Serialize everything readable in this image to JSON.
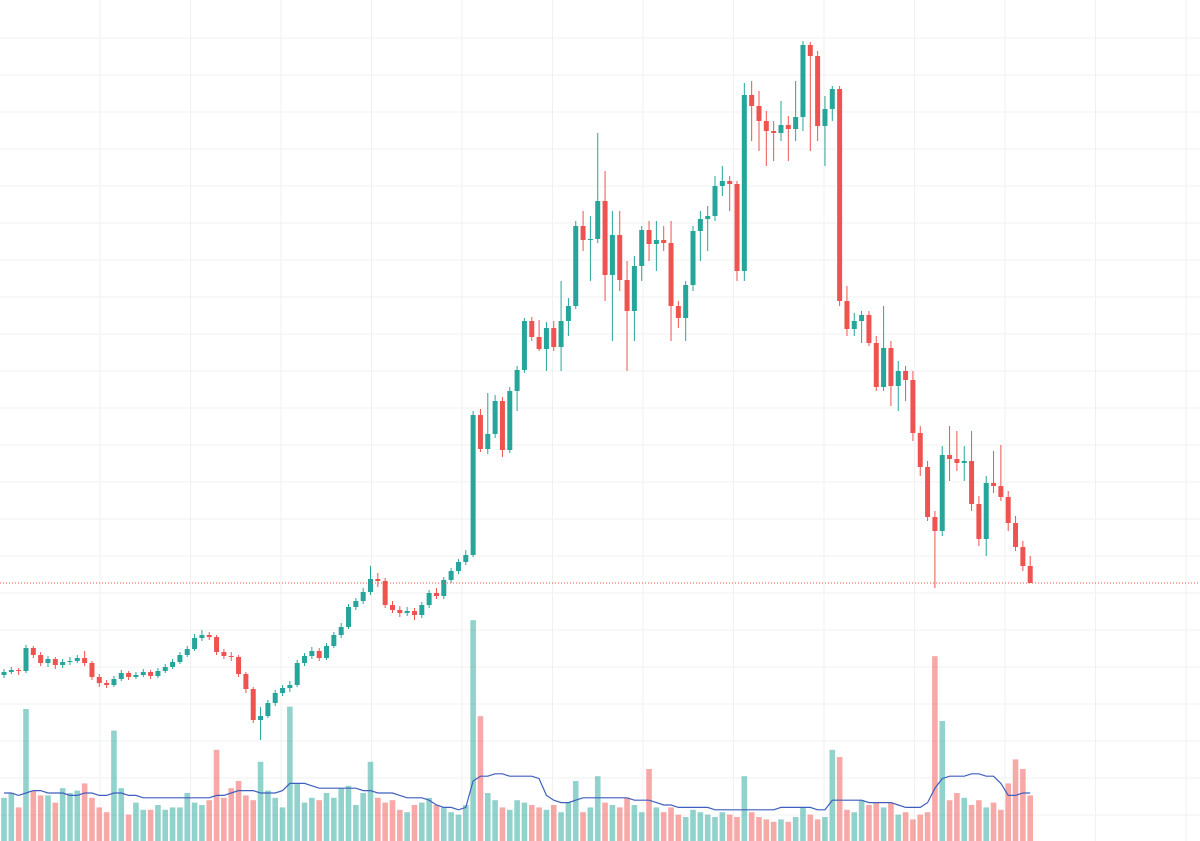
{
  "chart_data": {
    "type": "candlestick",
    "candles": [
      [
        16.6,
        17.2,
        16.3,
        16.9
      ],
      [
        16.9,
        17.4,
        16.7,
        17.1
      ],
      [
        17.1,
        17.3,
        16.6,
        17.0
      ],
      [
        17.0,
        19.6,
        16.8,
        19.3
      ],
      [
        19.3,
        19.5,
        18.3,
        18.6
      ],
      [
        18.6,
        18.9,
        17.5,
        17.8
      ],
      [
        17.8,
        18.5,
        17.4,
        18.2
      ],
      [
        18.2,
        18.4,
        17.2,
        17.6
      ],
      [
        17.6,
        18.2,
        17.3,
        17.9
      ],
      [
        17.9,
        18.4,
        17.6,
        18.0
      ],
      [
        18.0,
        18.6,
        17.8,
        18.3
      ],
      [
        18.3,
        19.0,
        17.5,
        17.8
      ],
      [
        17.8,
        18.0,
        16.1,
        16.4
      ],
      [
        16.4,
        16.7,
        15.4,
        15.8
      ],
      [
        15.8,
        16.1,
        15.3,
        15.6
      ],
      [
        15.6,
        16.5,
        15.4,
        16.2
      ],
      [
        16.2,
        17.1,
        16.0,
        16.8
      ],
      [
        16.8,
        17.0,
        16.1,
        16.4
      ],
      [
        16.4,
        16.9,
        16.2,
        16.6
      ],
      [
        16.6,
        17.2,
        16.4,
        16.9
      ],
      [
        16.9,
        17.1,
        16.2,
        16.5
      ],
      [
        16.5,
        17.3,
        16.3,
        17.0
      ],
      [
        17.0,
        17.7,
        16.8,
        17.4
      ],
      [
        17.4,
        18.2,
        17.2,
        17.9
      ],
      [
        17.9,
        18.9,
        17.7,
        18.6
      ],
      [
        18.6,
        19.5,
        18.4,
        19.2
      ],
      [
        19.2,
        20.7,
        19.0,
        20.3
      ],
      [
        20.3,
        21.1,
        20.0,
        20.6
      ],
      [
        20.6,
        20.9,
        20.1,
        20.4
      ],
      [
        20.4,
        20.6,
        18.6,
        18.9
      ],
      [
        18.9,
        19.2,
        18.2,
        18.5
      ],
      [
        18.5,
        18.9,
        18.0,
        18.4
      ],
      [
        18.4,
        18.6,
        16.4,
        16.7
      ],
      [
        16.7,
        16.9,
        14.8,
        15.2
      ],
      [
        15.2,
        15.4,
        11.8,
        12.1
      ],
      [
        12.1,
        13.4,
        10.1,
        12.5
      ],
      [
        12.5,
        14.1,
        12.3,
        13.8
      ],
      [
        13.8,
        15.1,
        13.5,
        14.8
      ],
      [
        14.8,
        15.6,
        14.5,
        15.3
      ],
      [
        15.3,
        16.0,
        14.9,
        15.6
      ],
      [
        15.6,
        18.1,
        15.4,
        17.8
      ],
      [
        17.8,
        18.8,
        17.5,
        18.5
      ],
      [
        18.5,
        19.4,
        18.2,
        19.0
      ],
      [
        19.0,
        19.3,
        18.0,
        18.3
      ],
      [
        18.3,
        19.8,
        18.1,
        19.5
      ],
      [
        19.5,
        20.9,
        19.3,
        20.6
      ],
      [
        20.6,
        21.8,
        20.3,
        21.4
      ],
      [
        21.4,
        23.7,
        21.2,
        23.4
      ],
      [
        23.4,
        24.3,
        23.1,
        24.0
      ],
      [
        24.0,
        25.3,
        23.7,
        24.9
      ],
      [
        24.9,
        27.5,
        24.6,
        26.2
      ],
      [
        26.2,
        26.8,
        25.4,
        26.0
      ],
      [
        26.0,
        26.3,
        23.3,
        23.6
      ],
      [
        23.6,
        24.0,
        22.8,
        23.1
      ],
      [
        23.1,
        23.5,
        22.4,
        22.8
      ],
      [
        22.8,
        23.4,
        22.5,
        23.0
      ],
      [
        23.0,
        23.3,
        22.1,
        22.6
      ],
      [
        22.6,
        23.9,
        22.3,
        23.6
      ],
      [
        23.6,
        25.1,
        23.3,
        24.8
      ],
      [
        24.8,
        25.3,
        24.2,
        24.5
      ],
      [
        24.5,
        26.4,
        24.2,
        26.1
      ],
      [
        26.1,
        27.3,
        25.8,
        27.0
      ],
      [
        27.0,
        28.2,
        26.7,
        27.9
      ],
      [
        27.9,
        29.1,
        27.6,
        28.6
      ],
      [
        28.6,
        43.0,
        28.4,
        42.6
      ],
      [
        42.6,
        43.2,
        38.9,
        39.2
      ],
      [
        39.2,
        44.8,
        38.7,
        40.7
      ],
      [
        40.7,
        44.6,
        40.3,
        44.0
      ],
      [
        44.0,
        44.4,
        38.4,
        39.1
      ],
      [
        39.1,
        45.4,
        38.8,
        45.0
      ],
      [
        45.0,
        47.5,
        43.0,
        47.1
      ],
      [
        47.1,
        52.3,
        46.8,
        52.0
      ],
      [
        52.0,
        52.4,
        50.0,
        50.4
      ],
      [
        50.4,
        52.1,
        49.0,
        49.2
      ],
      [
        49.2,
        51.9,
        47.0,
        51.3
      ],
      [
        51.3,
        52.0,
        49.0,
        49.4
      ],
      [
        49.4,
        56.0,
        47.0,
        52.0
      ],
      [
        52.0,
        54.3,
        50.5,
        53.5
      ],
      [
        53.5,
        62.0,
        53.2,
        61.5
      ],
      [
        61.5,
        63.0,
        59.0,
        60.1
      ],
      [
        60.1,
        62.5,
        56.0,
        60.2
      ],
      [
        60.2,
        70.8,
        59.8,
        64.0
      ],
      [
        64.0,
        67.0,
        54.0,
        56.6
      ],
      [
        56.6,
        63.0,
        50.0,
        60.6
      ],
      [
        60.6,
        63.0,
        55.0,
        56.1
      ],
      [
        56.1,
        58.0,
        47.0,
        53.0
      ],
      [
        53.0,
        58.5,
        50.0,
        57.5
      ],
      [
        57.5,
        61.5,
        56.0,
        61.1
      ],
      [
        61.1,
        62.0,
        58.0,
        59.7
      ],
      [
        59.7,
        62.0,
        57.0,
        60.1
      ],
      [
        60.1,
        61.5,
        59.0,
        59.8
      ],
      [
        59.8,
        62.0,
        50.0,
        53.5
      ],
      [
        53.5,
        54.0,
        51.3,
        52.3
      ],
      [
        52.3,
        56.0,
        50.0,
        55.6
      ],
      [
        55.6,
        61.5,
        55.0,
        61.0
      ],
      [
        61.0,
        63.0,
        58.0,
        62.2
      ],
      [
        62.2,
        63.5,
        59.0,
        62.5
      ],
      [
        62.5,
        66.5,
        62.0,
        65.5
      ],
      [
        65.5,
        67.5,
        64.5,
        66.0
      ],
      [
        66.0,
        66.5,
        63.0,
        65.7
      ],
      [
        65.7,
        66.0,
        56.0,
        57.0
      ],
      [
        57.0,
        75.8,
        56.0,
        74.6
      ],
      [
        74.6,
        76.0,
        70.0,
        73.5
      ],
      [
        73.5,
        75.0,
        69.0,
        72.0
      ],
      [
        72.0,
        73.0,
        67.5,
        71.0
      ],
      [
        71.0,
        72.0,
        68.0,
        70.8
      ],
      [
        70.8,
        74.0,
        70.0,
        71.6
      ],
      [
        71.6,
        72.5,
        68.0,
        71.2
      ],
      [
        71.2,
        76.0,
        70.0,
        72.4
      ],
      [
        72.4,
        80.0,
        71.0,
        79.6
      ],
      [
        79.6,
        79.9,
        69.0,
        78.5
      ],
      [
        78.5,
        79.0,
        70.0,
        71.5
      ],
      [
        71.5,
        74.5,
        67.5,
        73.2
      ],
      [
        73.2,
        75.5,
        72.0,
        75.2
      ],
      [
        75.2,
        75.5,
        53.5,
        54.0
      ],
      [
        54.0,
        55.5,
        50.5,
        51.2
      ],
      [
        51.2,
        52.8,
        50.5,
        52.0
      ],
      [
        52.0,
        53.0,
        49.8,
        52.6
      ],
      [
        52.6,
        53.0,
        49.5,
        49.8
      ],
      [
        49.8,
        50.5,
        45.0,
        45.4
      ],
      [
        45.4,
        53.5,
        45.0,
        49.3
      ],
      [
        49.3,
        50.0,
        43.5,
        45.5
      ],
      [
        45.5,
        48.0,
        43.0,
        47.0
      ],
      [
        47.0,
        47.5,
        44.0,
        46.1
      ],
      [
        46.1,
        47.0,
        40.0,
        40.8
      ],
      [
        40.8,
        41.5,
        36.5,
        37.4
      ],
      [
        37.4,
        38.0,
        32.0,
        32.4
      ],
      [
        32.4,
        33.0,
        25.3,
        31.0
      ],
      [
        31.0,
        39.5,
        30.5,
        38.6
      ],
      [
        38.6,
        41.5,
        36.0,
        38.2
      ],
      [
        38.2,
        41.0,
        37.0,
        37.8
      ],
      [
        37.8,
        39.5,
        36.0,
        38.0
      ],
      [
        38.0,
        41.0,
        33.0,
        33.7
      ],
      [
        33.7,
        34.5,
        29.5,
        30.2
      ],
      [
        30.2,
        36.5,
        28.5,
        35.8
      ],
      [
        35.8,
        39.0,
        34.8,
        35.5
      ],
      [
        35.5,
        39.6,
        34.0,
        34.4
      ],
      [
        34.4,
        35.0,
        31.0,
        31.8
      ],
      [
        31.8,
        32.5,
        29.0,
        29.4
      ],
      [
        29.4,
        30.0,
        27.0,
        27.5
      ],
      [
        27.5,
        28.5,
        25.8,
        25.8
      ]
    ],
    "volume": [
      18,
      20,
      14,
      55,
      21,
      19,
      19,
      16,
      22,
      20,
      21,
      24,
      18,
      14,
      12,
      46,
      22,
      11,
      16,
      13,
      13,
      15,
      13,
      14,
      14,
      20,
      16,
      15,
      17,
      38,
      18,
      22,
      25,
      19,
      17,
      33,
      21,
      18,
      14,
      56,
      24,
      16,
      18,
      17,
      20,
      18,
      22,
      23,
      15,
      20,
      33,
      18,
      16,
      17,
      13,
      12,
      15,
      16,
      18,
      15,
      14,
      12,
      11,
      15,
      92,
      52,
      20,
      17,
      14,
      13,
      17,
      16,
      15,
      14,
      13,
      15,
      12,
      16,
      25,
      12,
      14,
      27,
      16,
      15,
      14,
      18,
      15,
      12,
      30,
      14,
      12,
      14,
      11,
      10,
      13,
      12,
      11,
      10,
      12,
      11,
      10,
      27,
      12,
      10,
      9,
      8,
      9,
      8,
      10,
      14,
      11,
      9,
      10,
      38,
      35,
      13,
      12,
      17,
      15,
      16,
      14,
      16,
      11,
      12,
      9,
      11,
      12,
      77,
      50,
      17,
      20,
      18,
      15,
      17,
      14,
      16,
      13,
      24,
      34,
      30,
      19
    ],
    "volume_ma": [
      20,
      20,
      19,
      20,
      21,
      21,
      20,
      20,
      20,
      19,
      19,
      20,
      20,
      19,
      19,
      20,
      20,
      19,
      19,
      18,
      18,
      18,
      18,
      18,
      18,
      18,
      18,
      18,
      18,
      19,
      19,
      20,
      21,
      21,
      21,
      20,
      20,
      20,
      21,
      24,
      24,
      24,
      23,
      22,
      22,
      22,
      22,
      22,
      22,
      21,
      21,
      20,
      20,
      20,
      19,
      18,
      18,
      18,
      17,
      15,
      14,
      14,
      13,
      14,
      25,
      27,
      27,
      28,
      28,
      27,
      27,
      27,
      27,
      26,
      19,
      17,
      16,
      16,
      17,
      18,
      18,
      18,
      18,
      18,
      18,
      18,
      17,
      17,
      17,
      16,
      15,
      15,
      14,
      14,
      14,
      14,
      14,
      13,
      13,
      13,
      13,
      13,
      13,
      13,
      13,
      13,
      14,
      14,
      14,
      14,
      14,
      13,
      13,
      17,
      17,
      17,
      17,
      17,
      16,
      16,
      16,
      16,
      15,
      14,
      14,
      14,
      16,
      22,
      26,
      27,
      27,
      27,
      28,
      28,
      27,
      27,
      24,
      19,
      19,
      20,
      20
    ],
    "ylim": [
      0,
      84.1
    ],
    "volume_ylim": [
      0,
      100
    ],
    "up_color": "#26a69a",
    "down_color": "#ef5350",
    "ma_color": "#3f5fbf",
    "grid": true
  }
}
